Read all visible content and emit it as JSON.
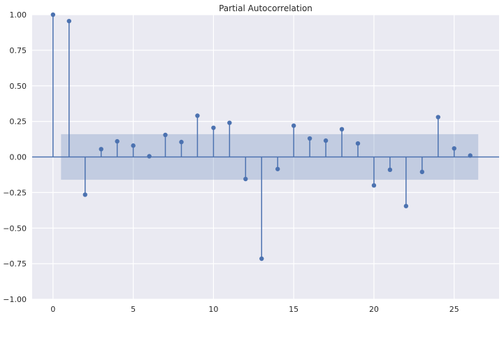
{
  "chart_data": {
    "type": "stem",
    "title": "Partial Autocorrelation",
    "xlabel": "",
    "ylabel": "",
    "xlim": [
      -1.3,
      27.8
    ],
    "ylim": [
      -1.0,
      1.0
    ],
    "xticks": [
      0,
      5,
      10,
      15,
      20,
      25
    ],
    "yticks": [
      -1.0,
      -0.75,
      -0.5,
      -0.25,
      0.0,
      0.25,
      0.5,
      0.75,
      1.0
    ],
    "xtick_labels": [
      "0",
      "5",
      "10",
      "15",
      "20",
      "25"
    ],
    "ytick_labels": [
      "−1.00",
      "−0.75",
      "−0.50",
      "−0.25",
      "0.00",
      "0.25",
      "0.50",
      "0.75",
      "1.00"
    ],
    "grid": true,
    "confidence_band": {
      "lower": -0.16,
      "upper": 0.16,
      "x_start": 0.5,
      "x_end": 26.5
    },
    "lags": [
      0,
      1,
      2,
      3,
      4,
      5,
      6,
      7,
      8,
      9,
      10,
      11,
      12,
      13,
      14,
      15,
      16,
      17,
      18,
      19,
      20,
      21,
      22,
      23,
      24,
      25,
      26
    ],
    "values": [
      1.0,
      0.955,
      -0.265,
      0.055,
      0.11,
      0.08,
      0.005,
      0.155,
      0.105,
      0.29,
      0.205,
      0.24,
      -0.155,
      -0.715,
      -0.085,
      0.22,
      0.13,
      0.115,
      0.195,
      0.095,
      -0.2,
      -0.09,
      -0.345,
      -0.105,
      0.28,
      0.06,
      0.01
    ],
    "colors": {
      "background": "#eaeaf2",
      "grid": "#ffffff",
      "stem": "#4c72b0",
      "band": "#4c72b0"
    }
  }
}
